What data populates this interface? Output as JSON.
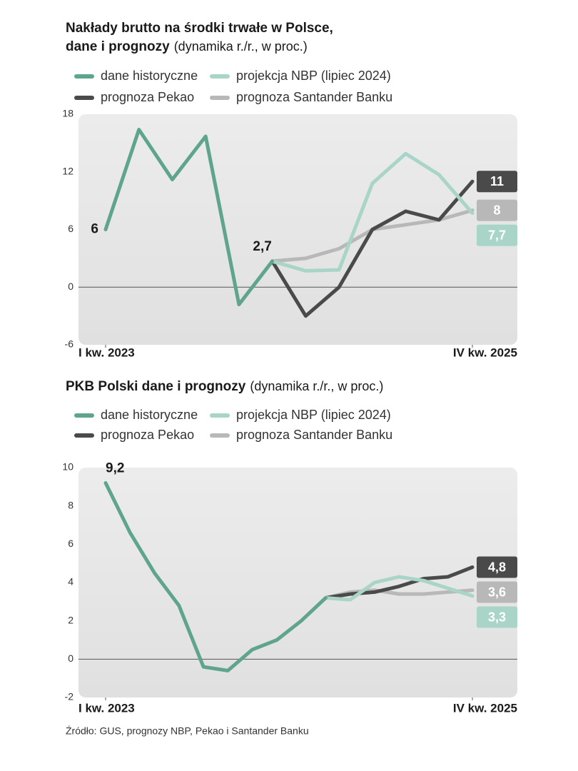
{
  "chart_data": [
    {
      "type": "line",
      "title": [
        "Nakłady brutto na środki trwałe w Polsce,",
        "dane i prognozy"
      ],
      "subtitle": "(dynamika r./r., w proc.)",
      "categories": [
        "I kw. 2023",
        null,
        null,
        null,
        null,
        null,
        null,
        null,
        null,
        null,
        null,
        "IV kw. 2025"
      ],
      "ylim": [
        -6,
        18
      ],
      "yticks": [
        -6,
        0,
        6,
        12,
        18
      ],
      "grid": false,
      "series": [
        {
          "name": "dane historyczne",
          "color": "#5fa58e",
          "values": [
            6,
            16.4,
            11.2,
            15.7,
            -1.8,
            2.7,
            null,
            null,
            null,
            null,
            null,
            null
          ],
          "value_labels": [
            "6",
            null,
            null,
            null,
            null,
            "2,7",
            null,
            null,
            null,
            null,
            null,
            null
          ]
        },
        {
          "name": "projekcja NBP (lipiec 2024)",
          "color": "#a9d5c8",
          "values": [
            null,
            null,
            null,
            null,
            null,
            2.7,
            1.7,
            1.8,
            10.8,
            13.9,
            11.7,
            7.7
          ],
          "value_labels": [
            null,
            null,
            null,
            null,
            null,
            null,
            null,
            null,
            null,
            null,
            null,
            "7,7"
          ]
        },
        {
          "name": "prognoza Pekao",
          "color": "#4a4a4a",
          "values": [
            null,
            null,
            null,
            null,
            null,
            2.7,
            -3,
            0,
            6,
            7.9,
            7,
            11
          ],
          "value_labels": [
            null,
            null,
            null,
            null,
            null,
            null,
            null,
            null,
            null,
            null,
            null,
            "11"
          ]
        },
        {
          "name": "prognoza Santander Banku",
          "color": "#b8b8b8",
          "values": [
            null,
            null,
            null,
            null,
            null,
            2.7,
            3,
            4,
            6,
            6.5,
            7,
            8
          ],
          "value_labels": [
            null,
            null,
            null,
            null,
            null,
            null,
            null,
            null,
            null,
            null,
            null,
            "8"
          ]
        }
      ]
    },
    {
      "type": "line",
      "title": [
        "PKB Polski dane i prognozy"
      ],
      "subtitle": "(dynamika r./r., w proc.)",
      "categories": [
        "I kw. 2023",
        null,
        null,
        null,
        null,
        null,
        null,
        null,
        null,
        null,
        null,
        null,
        null,
        null,
        null,
        "IV kw. 2025"
      ],
      "ylim": [
        -2,
        10
      ],
      "yticks": [
        -2,
        0,
        2,
        4,
        6,
        8,
        10
      ],
      "grid": false,
      "series": [
        {
          "name": "dane historyczne",
          "color": "#5fa58e",
          "values": [
            9.2,
            6.6,
            4.5,
            2.8,
            -0.4,
            -0.6,
            0.5,
            1.0,
            2.0,
            3.2,
            null,
            null,
            null,
            null,
            null,
            null
          ],
          "value_labels": [
            "9,2",
            null,
            null,
            null,
            null,
            null,
            null,
            null,
            null,
            null,
            null,
            null,
            null,
            null,
            null,
            null
          ]
        },
        {
          "name": "projekcja NBP (lipiec 2024)",
          "color": "#a9d5c8",
          "values": [
            null,
            null,
            null,
            null,
            null,
            null,
            null,
            null,
            null,
            3.2,
            3.1,
            4.0,
            4.3,
            4.1,
            3.7,
            3.3
          ],
          "value_labels": [
            null,
            null,
            null,
            null,
            null,
            null,
            null,
            null,
            null,
            null,
            null,
            null,
            null,
            null,
            null,
            "3,3"
          ]
        },
        {
          "name": "prognoza Pekao",
          "color": "#4a4a4a",
          "values": [
            null,
            null,
            null,
            null,
            null,
            null,
            null,
            null,
            null,
            3.2,
            3.4,
            3.5,
            3.8,
            4.2,
            4.3,
            4.8
          ],
          "value_labels": [
            null,
            null,
            null,
            null,
            null,
            null,
            null,
            null,
            null,
            null,
            null,
            null,
            null,
            null,
            null,
            "4,8"
          ]
        },
        {
          "name": "prognoza Santander Banku",
          "color": "#b8b8b8",
          "values": [
            null,
            null,
            null,
            null,
            null,
            null,
            null,
            null,
            null,
            3.2,
            3.5,
            3.6,
            3.4,
            3.4,
            3.5,
            3.6
          ],
          "value_labels": [
            null,
            null,
            null,
            null,
            null,
            null,
            null,
            null,
            null,
            null,
            null,
            null,
            null,
            null,
            null,
            "3,6"
          ]
        }
      ]
    }
  ],
  "source": "Źródło: GUS, prognozy NBP, Pekao i Santander Banku"
}
